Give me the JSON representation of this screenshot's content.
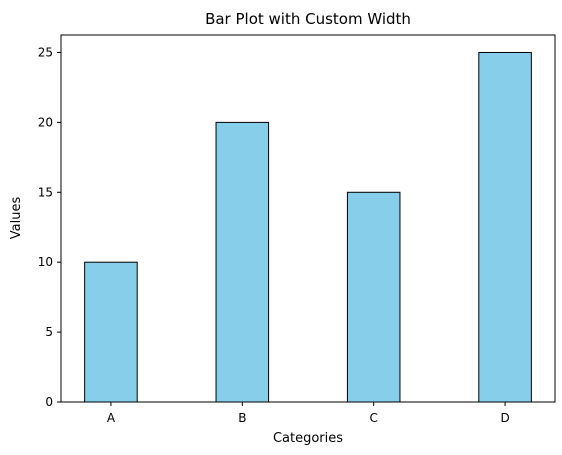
{
  "chart_data": {
    "type": "bar",
    "title": "Bar Plot with Custom Width",
    "xlabel": "Categories",
    "ylabel": "Values",
    "categories": [
      "A",
      "B",
      "C",
      "D"
    ],
    "values": [
      10,
      20,
      15,
      25
    ],
    "ylim": [
      0,
      26.25
    ],
    "yticks": [
      "0",
      "5",
      "10",
      "15",
      "20",
      "25"
    ],
    "grid": false,
    "bar_color": "#87CEEB",
    "edge_color": "#000000"
  }
}
